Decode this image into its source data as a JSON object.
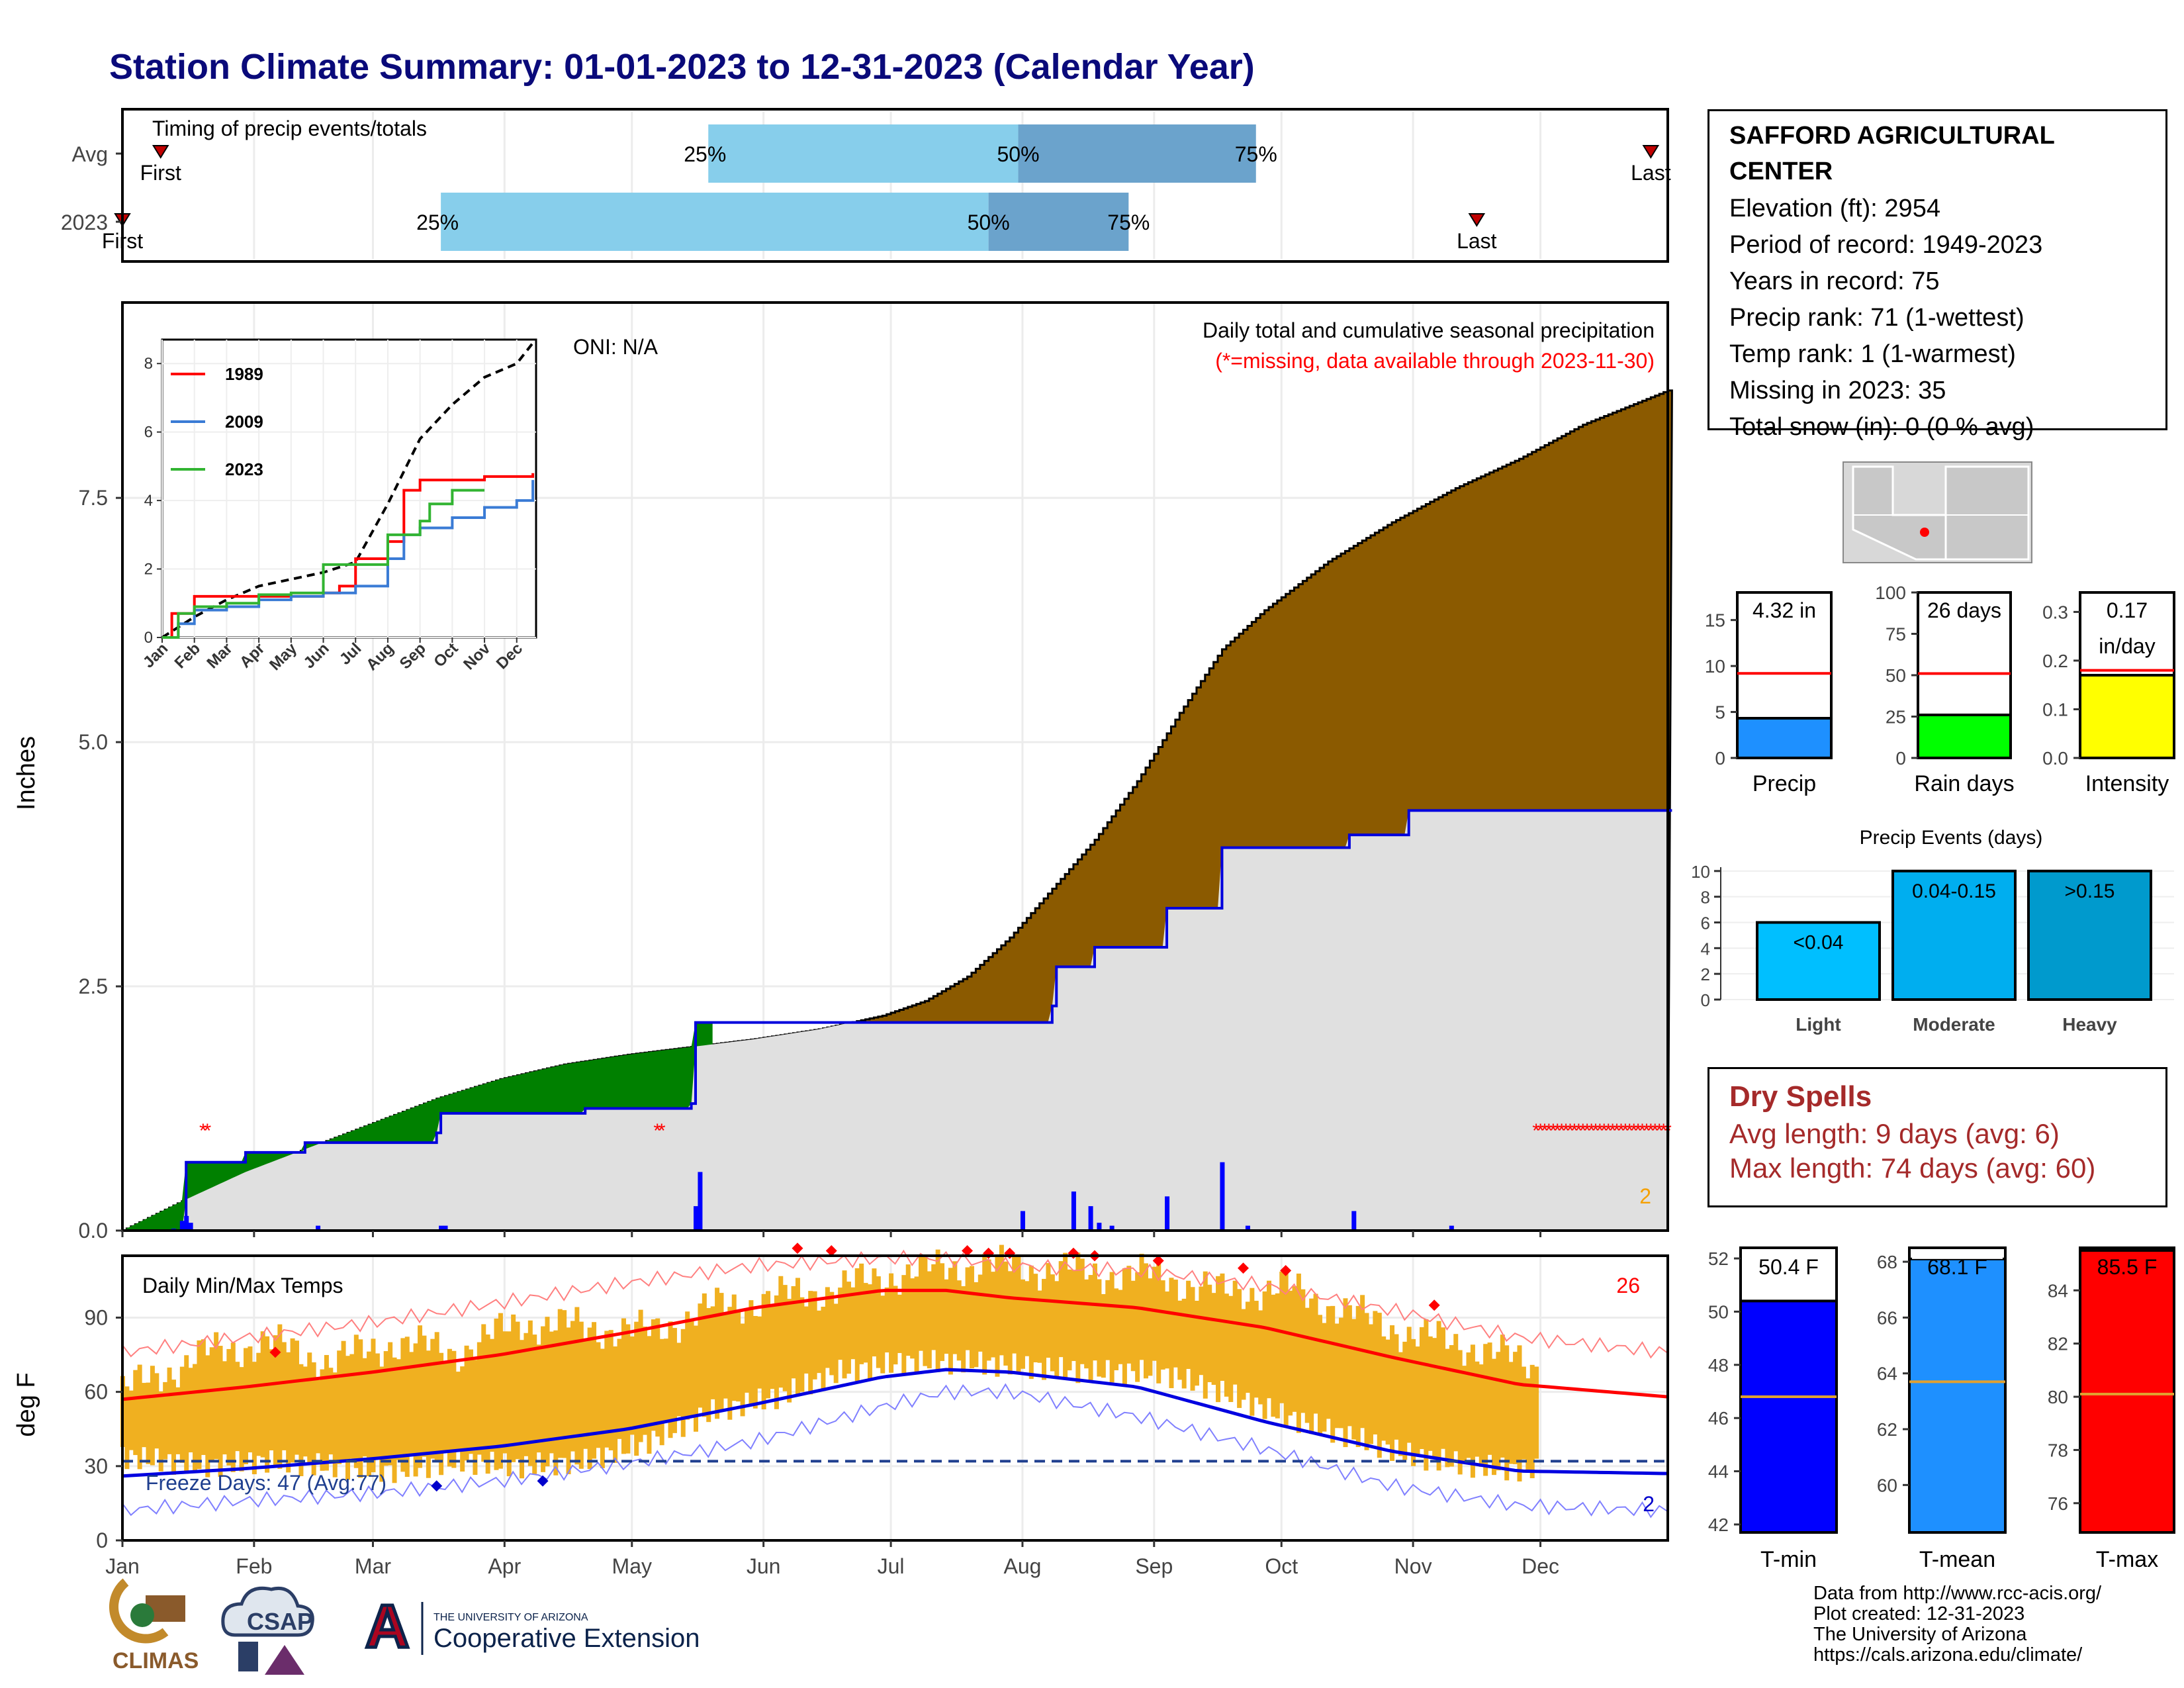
{
  "page": {
    "title": "Station Climate Summary: 01-01-2023 to 12-31-2023 (Calendar Year)"
  },
  "station": {
    "name_line1": "SAFFORD AGRICULTURAL",
    "name_line2": "CENTER",
    "elevation": "Elevation (ft): 2954",
    "period": "Period of record: 1949-2023",
    "years": "Years in record: 75",
    "precip_rank": "Precip rank: 71 (1-wettest)",
    "temp_rank": "Temp rank: 1 (1-warmest)",
    "missing": "Missing in 2023: 35",
    "snow": "Total snow (in): 0 (0 % avg)"
  },
  "dry_spells": {
    "title": "Dry Spells",
    "avg": "Avg length: 9 days (avg: 6)",
    "max": "Max length: 74 days (avg: 60)"
  },
  "credits": {
    "line1": "Data from http://www.rcc-acis.org/",
    "line2": "Plot created: 12-31-2023",
    "line3": "The University of Arizona",
    "line4": "https://cals.arizona.edu/climate/"
  },
  "logos": {
    "climas": "CLIMAS",
    "csap": "CSAP",
    "ua_small": "THE UNIVERSITY OF ARIZONA",
    "ua_big": "Cooperative Extension",
    "ua_letter": "A"
  },
  "colors": {
    "title": "#0a0a7a",
    "precip_fill": "#8B5A00",
    "normal_fill": "#E0E0E0",
    "deficit_fill": "#008000",
    "temp_bar": "#F0B020",
    "tmax_line": "#FF0000",
    "tmin_line": "#0000E0",
    "dry_spell_text": "#A52A2A",
    "light_blue": "#87CEEB",
    "mid_blue": "#6BA3CC"
  },
  "chart_data": [
    {
      "type": "bar",
      "id": "timing",
      "title": "Timing of precip events/totals",
      "rows": [
        {
          "label": "Avg",
          "first": "Jan 10",
          "q25": "May 19",
          "q50": "Jul 31",
          "q75": "Sep 25",
          "last": "Dec 27",
          "first_label": "First",
          "last_label": "Last"
        },
        {
          "label": "2023",
          "first": "Jan 1",
          "q25": "Mar 17",
          "q50": "Jul 24",
          "q75": "Aug 26",
          "last": "Nov 16",
          "first_label": "First",
          "last_label": "Last"
        }
      ],
      "labels": {
        "q25": "25%",
        "q50": "50%",
        "q75": "75%"
      }
    },
    {
      "type": "area",
      "id": "cumulative-precip",
      "title": "Daily total and cumulative seasonal precipitation",
      "subtitle": "(*=missing, data available through 2023-11-30)",
      "oni": "ONI: N/A",
      "ylabel": "Inches",
      "ylim": [
        0,
        9.5
      ],
      "yticks": [
        0.0,
        2.5,
        5.0,
        7.5
      ],
      "ytick_labels": [
        "0.0",
        "2.5",
        "5.0",
        "7.5"
      ],
      "corner_count": "2",
      "normal_cumulative": {
        "x_doy": [
          1,
          15,
          30,
          45,
          60,
          75,
          90,
          105,
          120,
          135,
          150,
          165,
          180,
          190,
          200,
          210,
          220,
          230,
          240,
          250,
          260,
          270,
          285,
          300,
          315,
          330,
          345,
          365
        ],
        "y": [
          0.0,
          0.3,
          0.6,
          0.85,
          1.1,
          1.35,
          1.55,
          1.7,
          1.8,
          1.88,
          1.96,
          2.06,
          2.2,
          2.35,
          2.6,
          3.0,
          3.5,
          4.0,
          4.6,
          5.3,
          5.95,
          6.35,
          6.85,
          7.25,
          7.6,
          7.9,
          8.25,
          8.6
        ]
      },
      "cumulative_2023": {
        "x_doy": [
          1,
          11,
          15,
          16,
          25,
          30,
          40,
          44,
          50,
          60,
          75,
          76,
          100,
          110,
          135,
          136,
          155,
          190,
          200,
          213,
          220,
          221,
          230,
          235,
          246,
          247,
          259,
          260,
          290,
          304,
          334
        ],
        "y": [
          0.0,
          0.0,
          0.0,
          0.7,
          0.7,
          0.8,
          0.8,
          0.9,
          0.9,
          0.9,
          1.0,
          1.2,
          1.2,
          1.25,
          1.3,
          2.13,
          2.13,
          2.13,
          2.13,
          2.13,
          2.3,
          2.7,
          2.9,
          2.9,
          2.9,
          3.3,
          3.3,
          3.92,
          4.05,
          4.3,
          4.3
        ]
      },
      "daily_bars": {
        "x_doy": [
          13,
          15,
          16,
          17,
          47,
          76,
          77,
          136,
          137,
          213,
          225,
          229,
          231,
          234,
          247,
          260,
          266,
          291,
          314
        ],
        "y": [
          0.02,
          0.1,
          0.15,
          0.08,
          0.05,
          0.05,
          0.05,
          0.25,
          0.6,
          0.2,
          0.4,
          0.25,
          0.08,
          0.05,
          0.35,
          0.7,
          0.05,
          0.2,
          0.05
        ]
      },
      "missing_days": [
        20,
        21,
        127,
        128,
        334,
        335,
        336,
        337,
        338,
        339,
        340,
        341,
        342,
        343,
        344,
        345,
        346,
        347,
        348,
        349,
        350,
        351,
        352,
        353,
        354,
        355,
        356,
        357,
        358,
        359,
        360,
        361,
        362,
        363,
        364,
        365
      ]
    },
    {
      "type": "line",
      "id": "inset-analog",
      "series": [
        {
          "name": "1989",
          "color": "#FF0000",
          "x_month": [
            0,
            0.3,
            1,
            2,
            3,
            4,
            5,
            5.5,
            6,
            7,
            7.5,
            8,
            9,
            10,
            11,
            11.5
          ],
          "y": [
            0,
            0.7,
            1.2,
            1.2,
            1.2,
            1.2,
            1.3,
            1.5,
            2.3,
            2.8,
            4.3,
            4.6,
            4.6,
            4.7,
            4.7,
            4.8
          ]
        },
        {
          "name": "2009",
          "color": "#3A7BD5",
          "x_month": [
            0,
            0.5,
            1,
            2,
            3,
            4,
            5,
            6,
            7,
            7.5,
            8,
            9,
            10,
            11,
            11.5
          ],
          "y": [
            0,
            0.4,
            0.8,
            0.9,
            1.1,
            1.2,
            1.3,
            1.5,
            2.3,
            3.0,
            3.2,
            3.5,
            3.8,
            4.0,
            4.6
          ]
        },
        {
          "name": "2023",
          "color": "#32B432",
          "x_month": [
            0,
            0.5,
            1,
            2,
            3,
            4,
            5,
            6,
            7,
            8,
            8.3,
            9,
            10
          ],
          "y": [
            0,
            0.7,
            0.9,
            1.0,
            1.25,
            1.3,
            2.13,
            2.13,
            3.0,
            3.4,
            3.9,
            4.3,
            4.3
          ]
        }
      ],
      "avg": {
        "x_month": [
          0,
          1,
          2,
          3,
          4,
          5,
          6,
          7,
          8,
          9,
          10,
          11,
          11.5
        ],
        "y": [
          0,
          0.6,
          1.1,
          1.5,
          1.7,
          1.9,
          2.2,
          3.9,
          5.8,
          6.8,
          7.6,
          8.0,
          8.6
        ]
      },
      "yticks": [
        0,
        2,
        4,
        6,
        8
      ],
      "ytick_labels": [
        "0",
        "2",
        "4",
        "6",
        "8"
      ],
      "months": [
        "Jan",
        "Feb",
        "Mar",
        "Apr",
        "May",
        "Jun",
        "Jul",
        "Aug",
        "Sep",
        "Oct",
        "Nov",
        "Dec"
      ]
    },
    {
      "type": "bar",
      "id": "daily-temps",
      "title": "Daily Min/Max Temps",
      "ylabel": "deg F",
      "ylim": [
        0,
        115
      ],
      "yticks": [
        0,
        30,
        60,
        90
      ],
      "ytick_labels": [
        "0",
        "30",
        "60",
        "90"
      ],
      "freeze_label": "Freeze Days: 47 (Avg:77)",
      "freeze_line": 32,
      "hot_count": "26",
      "cold_count": "2",
      "months": [
        "Jan",
        "Feb",
        "Mar",
        "Apr",
        "May",
        "Jun",
        "Jul",
        "Aug",
        "Sep",
        "Oct",
        "Nov",
        "Dec"
      ],
      "avg_max": {
        "x_doy": [
          1,
          30,
          60,
          90,
          120,
          150,
          180,
          195,
          210,
          240,
          270,
          300,
          330,
          365
        ],
        "y": [
          57,
          62,
          68,
          75,
          84,
          94,
          101,
          101,
          98,
          94,
          86,
          74,
          63,
          58
        ]
      },
      "avg_min": {
        "x_doy": [
          1,
          30,
          60,
          90,
          120,
          150,
          180,
          195,
          210,
          240,
          270,
          300,
          330,
          365
        ],
        "y": [
          26,
          29,
          33,
          38,
          45,
          55,
          66,
          69,
          68,
          62,
          48,
          36,
          28,
          27
        ]
      },
      "record_max": {
        "x_doy": [
          1,
          30,
          60,
          90,
          120,
          150,
          180,
          195,
          210,
          240,
          270,
          300,
          330,
          365
        ],
        "y": [
          76,
          82,
          88,
          96,
          104,
          111,
          114,
          114,
          111,
          109,
          103,
          93,
          82,
          76
        ]
      },
      "record_min": {
        "x_doy": [
          1,
          30,
          60,
          90,
          120,
          150,
          180,
          195,
          210,
          240,
          270,
          300,
          330,
          365
        ],
        "y": [
          12,
          16,
          19,
          24,
          31,
          40,
          54,
          60,
          60,
          50,
          37,
          22,
          14,
          12
        ]
      },
      "daily_max_2023": {
        "x_doy": [
          1,
          20,
          35,
          50,
          65,
          80,
          95,
          110,
          125,
          140,
          155,
          170,
          185,
          200,
          215,
          230,
          245,
          260,
          275,
          290,
          305,
          320,
          334
        ],
        "y": [
          60,
          75,
          80,
          72,
          80,
          76,
          88,
          86,
          84,
          94,
          98,
          102,
          108,
          111,
          110,
          108,
          107,
          100,
          102,
          92,
          83,
          78,
          70
        ]
      },
      "daily_min_2023": {
        "x_doy": [
          1,
          20,
          35,
          50,
          65,
          80,
          95,
          110,
          125,
          140,
          155,
          170,
          185,
          200,
          215,
          230,
          245,
          260,
          275,
          290,
          305,
          320,
          334
        ],
        "y": [
          34,
          30,
          32,
          30,
          28,
          32,
          30,
          32,
          40,
          52,
          58,
          68,
          72,
          72,
          70,
          68,
          68,
          60,
          50,
          42,
          34,
          30,
          28
        ]
      }
    },
    {
      "type": "bar",
      "id": "summary-precip",
      "panels": [
        {
          "name": "Precip",
          "value": 4.32,
          "value_label": "4.32 in",
          "normal": 9.2,
          "ylim": [
            0,
            18
          ],
          "yticks": [
            0,
            5,
            10,
            15
          ],
          "ytick_labels": [
            "0",
            "5",
            "10",
            "15"
          ],
          "color": "#1E90FF"
        },
        {
          "name": "Rain days",
          "value": 26,
          "value_label": "26 days",
          "normal": 51,
          "ylim": [
            0,
            100
          ],
          "yticks": [
            0,
            25,
            50,
            75,
            100
          ],
          "ytick_labels": [
            "0",
            "25",
            "50",
            "75",
            "100"
          ],
          "color": "#00FF00"
        },
        {
          "name": "Intensity",
          "value": 0.17,
          "value_label": "0.17",
          "value_label2": "in/day",
          "normal": 0.18,
          "ylim": [
            0,
            0.34
          ],
          "yticks": [
            0,
            0.1,
            0.2,
            0.3
          ],
          "ytick_labels": [
            "0.0",
            "0.1",
            "0.2",
            "0.3"
          ],
          "color": "#FFFF00"
        }
      ]
    },
    {
      "type": "bar",
      "id": "precip-events",
      "title": "Precip Events (days)",
      "categories": [
        "Light",
        "Moderate",
        "Heavy"
      ],
      "values": [
        6,
        10,
        10
      ],
      "bar_labels": [
        "<0.04",
        "0.04-0.15",
        ">0.15"
      ],
      "colors": [
        "#00BFFF",
        "#00AEEF",
        "#009ACD"
      ],
      "ylim": [
        0,
        10
      ],
      "yticks": [
        0,
        2,
        4,
        6,
        8,
        10
      ],
      "ytick_labels": [
        "0",
        "2",
        "4",
        "6",
        "8",
        "10"
      ]
    },
    {
      "type": "bar",
      "id": "summary-temps",
      "panels": [
        {
          "name": "T-min",
          "value": 50.4,
          "value_label": "50.4 F",
          "normal": 46.8,
          "ylim": [
            41.7,
            52.4
          ],
          "yticks": [
            42,
            44,
            46,
            48,
            50,
            52
          ],
          "ytick_labels": [
            "42",
            "44",
            "46",
            "48",
            "50",
            "52"
          ],
          "color": "#0000FF"
        },
        {
          "name": "T-mean",
          "value": 68.1,
          "value_label": "68.1 F",
          "normal": 63.7,
          "ylim": [
            58.3,
            68.5
          ],
          "yticks": [
            60,
            62,
            64,
            66,
            68
          ],
          "ytick_labels": [
            "60",
            "62",
            "64",
            "66",
            "68"
          ],
          "color": "#1E90FF"
        },
        {
          "name": "T-max",
          "value": 85.5,
          "value_label": "85.5 F",
          "normal": 80.1,
          "ylim": [
            74.9,
            85.6
          ],
          "yticks": [
            76,
            78,
            80,
            82,
            84
          ],
          "ytick_labels": [
            "76",
            "78",
            "80",
            "82",
            "84"
          ],
          "color": "#FF0000"
        }
      ]
    }
  ]
}
